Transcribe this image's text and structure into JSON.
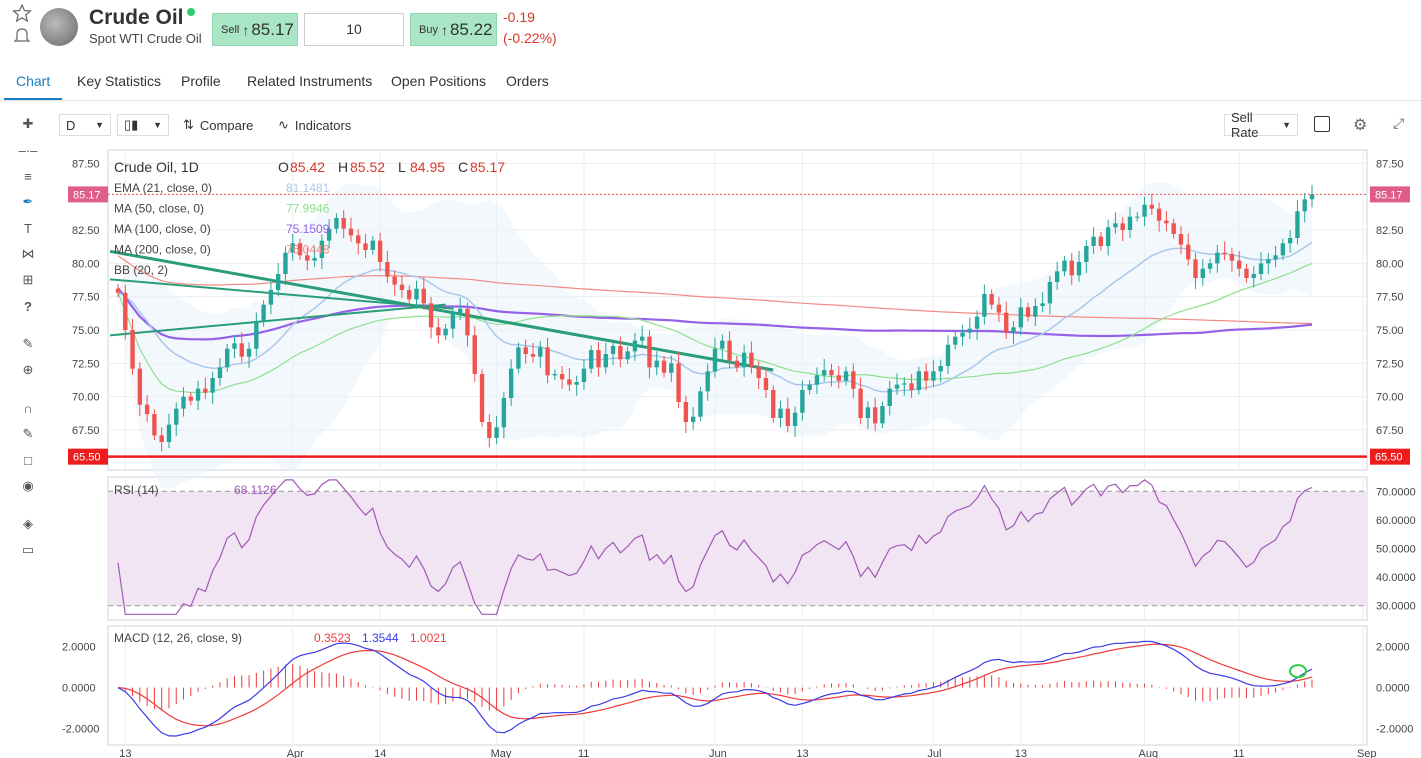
{
  "header": {
    "title": "Crude Oil",
    "subtitle": "Spot WTI Crude Oil",
    "sell_label": "Sell",
    "sell_price": "85.17",
    "amount": "10",
    "buy_label": "Buy",
    "buy_price": "85.22",
    "change": "-0.19",
    "change_pct": "(-0.22%)"
  },
  "tabs": [
    {
      "label": "Chart"
    },
    {
      "label": "Key Statistics"
    },
    {
      "label": "Profile"
    },
    {
      "label": "Related Instruments"
    },
    {
      "label": "Open Positions"
    },
    {
      "label": "Orders"
    }
  ],
  "toolbar": {
    "interval": "D",
    "compare": "Compare",
    "indicators": "Indicators",
    "rate": "Sell Rate"
  },
  "colors": {
    "up": "#26a69a",
    "down": "#ef5350",
    "accent": "#1a7ec6",
    "ema": "#a9c8ea",
    "ma50": "#8ee08e",
    "ma100": "#9461e8",
    "ma200": "#f48a82",
    "rsi": "#a05ab5",
    "macd": "#3a3ae8",
    "signal": "#ef3b3b",
    "level": "#ee1c1c"
  },
  "chart_data": {
    "type": "candlestick",
    "instrument": "Crude Oil",
    "interval": "1D",
    "ohlc_header": {
      "o_label": "O",
      "o": "85.42",
      "h_label": "H",
      "h": "85.52",
      "l_label": "L",
      "l": "84.95",
      "c_label": "C",
      "c": "85.17"
    },
    "price_axis": {
      "ylim": [
        64.5,
        88.5
      ],
      "ticks": [
        "87.50",
        "82.50",
        "80.00",
        "77.50",
        "75.00",
        "72.50",
        "70.00",
        "67.50"
      ],
      "current_label": "85.17",
      "level_label": "65.50",
      "level": 65.5
    },
    "x_ticks": [
      "13",
      "Apr",
      "14",
      "May",
      "11",
      "Jun",
      "13",
      "Jul",
      "13",
      "Aug",
      "11",
      "Sep"
    ],
    "x_tick_idx": [
      1,
      24,
      36,
      52,
      64,
      82,
      94,
      112,
      124,
      141,
      154,
      171
    ],
    "indicators": [
      {
        "name": "EMA (21, close, 0)",
        "value": "81.1481"
      },
      {
        "name": "MA (50, close, 0)",
        "value": "77.9946"
      },
      {
        "name": "MA (100, close, 0)",
        "value": "75.1509"
      },
      {
        "name": "MA (200, close, 0)",
        "value": "76.0448"
      },
      {
        "name": "BB (20, 2)",
        "value": ""
      }
    ],
    "closes": [
      77.8,
      75.0,
      72.1,
      69.4,
      68.7,
      67.1,
      66.6,
      67.9,
      69.1,
      70.0,
      69.7,
      70.6,
      70.3,
      71.4,
      72.2,
      73.6,
      74.0,
      73.0,
      73.6,
      75.6,
      76.9,
      78.0,
      79.2,
      80.8,
      81.5,
      80.6,
      80.2,
      80.4,
      81.7,
      82.6,
      83.4,
      82.6,
      82.1,
      81.5,
      81.0,
      81.7,
      80.1,
      79.0,
      78.4,
      78.0,
      77.3,
      78.1,
      77.0,
      75.2,
      74.6,
      75.1,
      76.2,
      76.6,
      74.6,
      71.7,
      68.1,
      66.9,
      67.7,
      69.9,
      72.1,
      73.7,
      73.2,
      73.0,
      73.7,
      71.6,
      71.7,
      71.3,
      70.9,
      71.1,
      72.1,
      73.5,
      72.2,
      73.2,
      73.8,
      72.8,
      73.4,
      74.2,
      74.5,
      72.2,
      72.7,
      71.8,
      72.5,
      69.6,
      68.1,
      68.5,
      70.4,
      71.9,
      73.6,
      74.2,
      72.7,
      72.2,
      73.3,
      72.2,
      71.4,
      70.5,
      68.4,
      69.1,
      67.8,
      68.8,
      70.5,
      70.9,
      71.6,
      72.0,
      71.6,
      71.2,
      71.9,
      70.6,
      68.4,
      69.2,
      68.0,
      69.3,
      70.6,
      70.9,
      71.0,
      70.5,
      71.9,
      71.2,
      71.9,
      72.3,
      73.9,
      74.5,
      74.8,
      75.1,
      76.0,
      77.7,
      76.9,
      76.3,
      74.8,
      75.2,
      76.7,
      76.0,
      76.8,
      77.0,
      78.6,
      79.4,
      80.2,
      79.1,
      80.1,
      81.3,
      82.0,
      81.3,
      82.7,
      83.0,
      82.5,
      83.5,
      83.5,
      84.4,
      84.1,
      83.2,
      83.0,
      82.2,
      81.4,
      80.3,
      78.9,
      79.6,
      80.0,
      80.8,
      80.7,
      80.2,
      79.6,
      78.9,
      79.2,
      80.0,
      80.3,
      80.6,
      81.5,
      81.9,
      83.9,
      84.8,
      85.17
    ]
  },
  "rsi": {
    "label": "RSI (14)",
    "value": "68.1126",
    "ylim": [
      25,
      75
    ],
    "ticks": [
      "70.0000",
      "60.0000",
      "50.0000",
      "40.0000",
      "30.0000"
    ]
  },
  "macd": {
    "label": "MACD (12, 26, close, 9)",
    "values": [
      "0.3523",
      "1.3544",
      "1.0021"
    ],
    "ylim": [
      -2.8,
      3.0
    ],
    "ticks": [
      "2.0000",
      "0.0000",
      "-2.0000"
    ]
  }
}
